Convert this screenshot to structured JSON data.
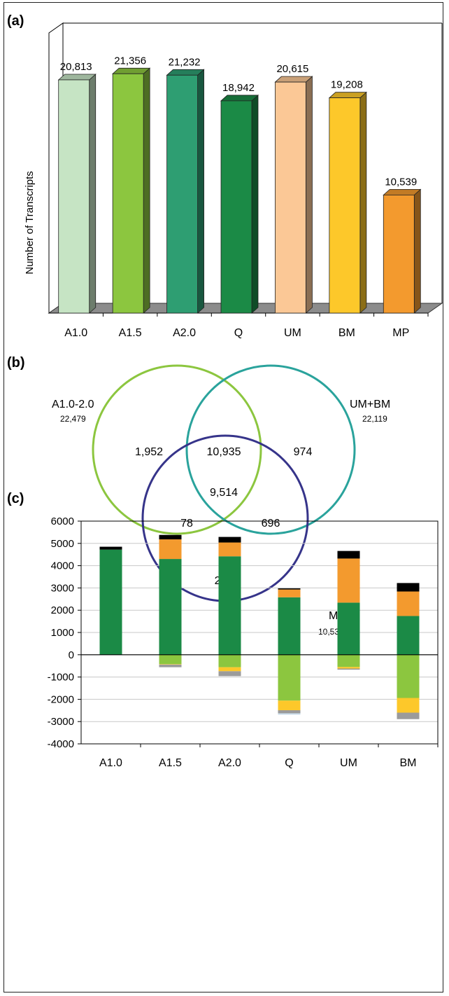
{
  "panels": {
    "a": {
      "label": "(a)"
    },
    "b": {
      "label": "(b)"
    },
    "c": {
      "label": "(c)"
    }
  },
  "colors": {
    "A1.0": "#c6e4c4",
    "A1.5": "#8cc63f",
    "A2.0": "#2e9e72",
    "Q": "#1b8a46",
    "UM": "#fbc896",
    "BM": "#fdc82a",
    "MP": "#f39a2e",
    "venn_a": "#8cc63f",
    "venn_um": "#2aa39c",
    "venn_mp": "#36348a",
    "stack_green": "#1b8a46",
    "stack_orange": "#f39a2e",
    "stack_black": "#000000",
    "stack_lightgreen": "#8cc63f",
    "stack_yellow": "#fdc82a",
    "stack_gray": "#9b9b9b",
    "stack_lightblue": "#c9dcea"
  },
  "chart_data": [
    {
      "type": "bar",
      "ylabel": "Number of Transcripts",
      "categories": [
        "A1.0",
        "A1.5",
        "A2.0",
        "Q",
        "UM",
        "BM",
        "MP"
      ],
      "values": [
        20813,
        21356,
        21232,
        18942,
        20615,
        19208,
        10539
      ],
      "value_labels": [
        "20,813",
        "21,356",
        "21,232",
        "18,942",
        "20,615",
        "19,208",
        "10,539"
      ],
      "ylim": [
        0,
        25000
      ],
      "style": "3d",
      "grid": false,
      "legend": "none"
    },
    {
      "type": "venn",
      "sets": [
        {
          "name": "A1.0-2.0",
          "total": "22,479"
        },
        {
          "name": "UM+BM",
          "total": "22,119"
        },
        {
          "name": "MP",
          "total": "10,539"
        }
      ],
      "regions": {
        "a_only": "1,952",
        "a_um": "10,935",
        "um_only": "974",
        "all": "9,514",
        "a_mp": "78",
        "um_mp": "696",
        "mp_only": "251"
      }
    },
    {
      "type": "bar",
      "stacked": true,
      "categories": [
        "A1.0",
        "A1.5",
        "A2.0",
        "Q",
        "UM",
        "BM"
      ],
      "ylim": [
        -4000,
        6000
      ],
      "yticks": [
        "6000",
        "5000",
        "4000",
        "3000",
        "2000",
        "1000",
        "0",
        "-1000",
        "-2000",
        "-3000",
        "-4000"
      ],
      "grid": true,
      "legend": "none",
      "positive_series": [
        {
          "color": "stack_green",
          "values": [
            4720,
            4300,
            4420,
            2580,
            2340,
            1740
          ]
        },
        {
          "color": "stack_orange",
          "values": [
            0,
            880,
            620,
            350,
            1980,
            1100
          ]
        },
        {
          "color": "stack_black",
          "values": [
            130,
            200,
            250,
            50,
            340,
            380
          ]
        }
      ],
      "negative_series": [
        {
          "color": "stack_lightgreen",
          "values": [
            0,
            -420,
            -560,
            -2060,
            -550,
            -1940
          ]
        },
        {
          "color": "stack_yellow",
          "values": [
            0,
            -20,
            -180,
            -430,
            -70,
            -660
          ]
        },
        {
          "color": "stack_gray",
          "values": [
            0,
            -120,
            -220,
            -140,
            -50,
            -290
          ]
        },
        {
          "color": "stack_lightblue",
          "values": [
            0,
            0,
            0,
            -60,
            0,
            0
          ]
        }
      ]
    }
  ]
}
